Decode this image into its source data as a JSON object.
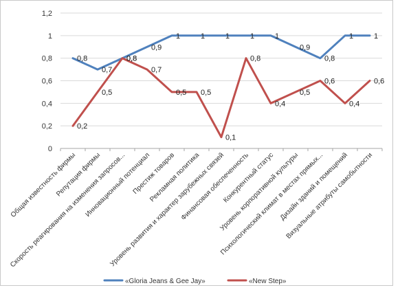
{
  "chart_data": {
    "type": "line",
    "title": "",
    "xlabel": "",
    "ylabel": "",
    "ylim": [
      0,
      1.2
    ],
    "yticks": [
      0,
      0.2,
      0.4,
      0.6,
      0.8,
      1,
      1.2
    ],
    "ytick_labels": [
      "0",
      "0,2",
      "0,4",
      "0,6",
      "0,8",
      "1",
      "1,2"
    ],
    "grid": "horizontal",
    "legend_position": "bottom",
    "categories": [
      "Общая известность фирмы",
      "Репутация фирмы",
      "Скорость реагирования на изменения запросов...",
      "Инновационный потенциал",
      "Престиж товаров",
      "Рекламная политика",
      "Уровень развития и характер зарубежных связей",
      "Финансовая обеспеченность",
      "Конкурентный статус",
      "Уровень корпоративной культуры",
      "Психологический климат в местах прямых...",
      "Дизайн зданий и помещений",
      "Визуальные атрибуты самобытности"
    ],
    "series": [
      {
        "name": "«Gloria Jeans & Gee Jay»",
        "color": "#4f81bd",
        "values": [
          0.8,
          0.7,
          0.8,
          0.9,
          1,
          1,
          1,
          1,
          1,
          0.9,
          0.8,
          1,
          1
        ],
        "labels": [
          "0,8",
          "0,7",
          "0,8",
          "0,9",
          "1",
          "1",
          "1",
          "1",
          "1",
          "0,9",
          "0,8",
          "1",
          "1"
        ]
      },
      {
        "name": "«New Step»",
        "color": "#c0504d",
        "values": [
          0.2,
          0.5,
          0.8,
          0.7,
          0.5,
          0.5,
          0.1,
          0.8,
          0.4,
          0.5,
          0.6,
          0.4,
          0.6
        ],
        "labels": [
          "0,2",
          "0,5",
          "0,8",
          "0,7",
          "0,5",
          "0,5",
          "0,1",
          "0,8",
          "0,4",
          "0,5",
          "0,6",
          "0,4",
          "0,6"
        ]
      }
    ]
  }
}
